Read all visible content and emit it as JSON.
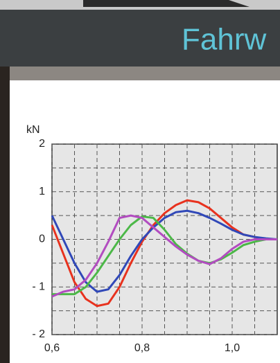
{
  "header": {
    "title": "Fahrw"
  },
  "chart_data": {
    "type": "line",
    "y_label": "kN",
    "x": [
      0.6,
      0.625,
      0.65,
      0.675,
      0.7,
      0.725,
      0.75,
      0.775,
      0.8,
      0.825,
      0.85,
      0.875,
      0.9,
      0.925,
      0.95,
      0.975,
      1.0,
      1.025,
      1.05,
      1.075,
      1.1
    ],
    "series": [
      {
        "color": "#e8321e",
        "values": [
          0.3,
          -0.3,
          -0.9,
          -1.25,
          -1.4,
          -1.35,
          -1.0,
          -0.5,
          -0.05,
          0.3,
          0.55,
          0.72,
          0.82,
          0.78,
          0.65,
          0.45,
          0.25,
          0.1,
          0.05,
          0.0,
          0.0
        ]
      },
      {
        "color": "#3048b8",
        "values": [
          0.5,
          0.0,
          -0.5,
          -0.9,
          -1.1,
          -1.05,
          -0.75,
          -0.35,
          0.0,
          0.25,
          0.45,
          0.57,
          0.6,
          0.55,
          0.45,
          0.33,
          0.2,
          0.1,
          0.05,
          0.02,
          0.0
        ]
      },
      {
        "color": "#4cb848",
        "values": [
          -1.15,
          -1.15,
          -1.15,
          -1.0,
          -0.7,
          -0.35,
          0.0,
          0.3,
          0.48,
          0.45,
          0.2,
          -0.1,
          -0.3,
          -0.45,
          -0.5,
          -0.42,
          -0.28,
          -0.12,
          -0.05,
          0.0,
          0.0
        ]
      },
      {
        "color": "#b24cc0",
        "values": [
          -1.2,
          -1.1,
          -1.05,
          -0.85,
          -0.5,
          -0.05,
          0.45,
          0.5,
          0.45,
          0.25,
          0.05,
          -0.15,
          -0.32,
          -0.45,
          -0.52,
          -0.4,
          -0.2,
          -0.05,
          0.0,
          0.0,
          0.0
        ]
      }
    ],
    "xlim": [
      0.6,
      1.1
    ],
    "xticks": [
      {
        "value": 0.6,
        "label": "0,6"
      },
      {
        "value": 0.8,
        "label": "0,8"
      },
      {
        "value": 1.0,
        "label": "1,0"
      }
    ],
    "ylim": [
      -2,
      2
    ],
    "yticks": [
      {
        "value": -2,
        "label": "- 2"
      },
      {
        "value": -1,
        "label": "- 1"
      },
      0,
      1,
      2
    ],
    "minor_xticks": [
      0.65,
      0.7,
      0.75,
      0.85,
      0.9,
      0.95,
      1.05
    ],
    "minor_yticks": [
      -1.5,
      -0.5,
      0.5,
      1.5
    ],
    "grid": true
  }
}
